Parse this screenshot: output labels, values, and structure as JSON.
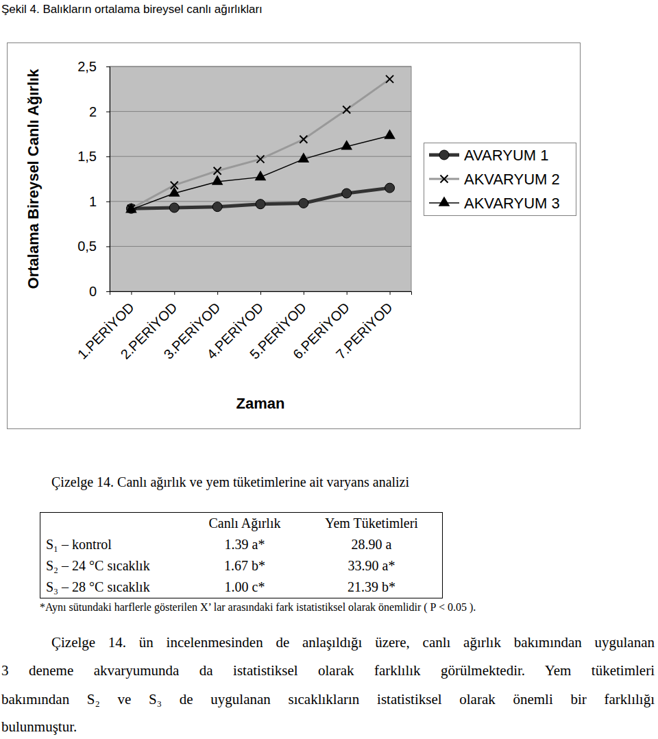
{
  "figure": {
    "caption": "Şekil 4. Balıkların ortalama bireysel canlı ağırlıkları"
  },
  "chart_data": {
    "type": "line",
    "x_label": "Zaman",
    "y_label": "Ortalama Bireysel Canlı Ağırlık",
    "categories": [
      "1.PERİYOD",
      "2.PERİYOD",
      "3.PERİYOD",
      "4.PERİYOD",
      "5.PERİYOD",
      "6.PERİYOD",
      "7.PERİYOD"
    ],
    "series": [
      {
        "name": "AVARYUM 1",
        "color": "#333333",
        "marker": "circle",
        "line_style": "solid",
        "values": [
          0.92,
          0.93,
          0.94,
          0.97,
          0.98,
          1.09,
          1.15
        ]
      },
      {
        "name": "AKVARYUM 2",
        "color": "#999999",
        "marker": "x",
        "line_style": "solid",
        "values": [
          0.92,
          1.18,
          1.34,
          1.47,
          1.69,
          2.02,
          2.36
        ]
      },
      {
        "name": "AKVARYUM 3",
        "color": "#000000",
        "marker": "triangle",
        "line_style": "solid",
        "values": [
          0.91,
          1.09,
          1.22,
          1.27,
          1.47,
          1.61,
          1.73
        ]
      }
    ],
    "ylim": [
      0,
      2.5
    ],
    "yticks": [
      0,
      {
        "value": 0.5,
        "label": "0,5"
      },
      1,
      {
        "value": 1.5,
        "label": "1,5"
      },
      2,
      {
        "value": 2.5,
        "label": "2,5"
      }
    ],
    "grid": true,
    "legend": "right"
  },
  "table": {
    "caption": "Çizelge 14. Canlı ağırlık ve yem tüketimlerine ait varyans analizi",
    "header": [
      "Canlı Ağırlık",
      "Yem Tüketimleri"
    ],
    "rows": [
      [
        "S₁ – kontrol",
        "1.39 a*",
        "28.90 a"
      ],
      [
        "S₂ – 24 °C sıcaklık",
        "1.67 b*",
        "33.90 a*"
      ],
      [
        "S₃ – 28 °C sıcaklık",
        "1.00 c*",
        "21.39 b*"
      ]
    ],
    "footnote": "*Aynı sütundaki harflerle gösterilen X’ lar arasındaki fark istatistiksel olarak önemlidir ( P < 0.05 )."
  },
  "paragraph": [
    "Çizelge 14. ün incelenmesinden de anlaşıldığı üzere, canlı ağırlık bakımından uygulanan",
    "3 deneme akvaryumunda da istatistiksel olarak farklılık görülmektedir. Yem tüketimleri",
    "bakımından S₂ ve S₃ de uygulanan sıcaklıkların istatistiksel olarak önemli bir farklılığı",
    "bulunmuştur."
  ]
}
